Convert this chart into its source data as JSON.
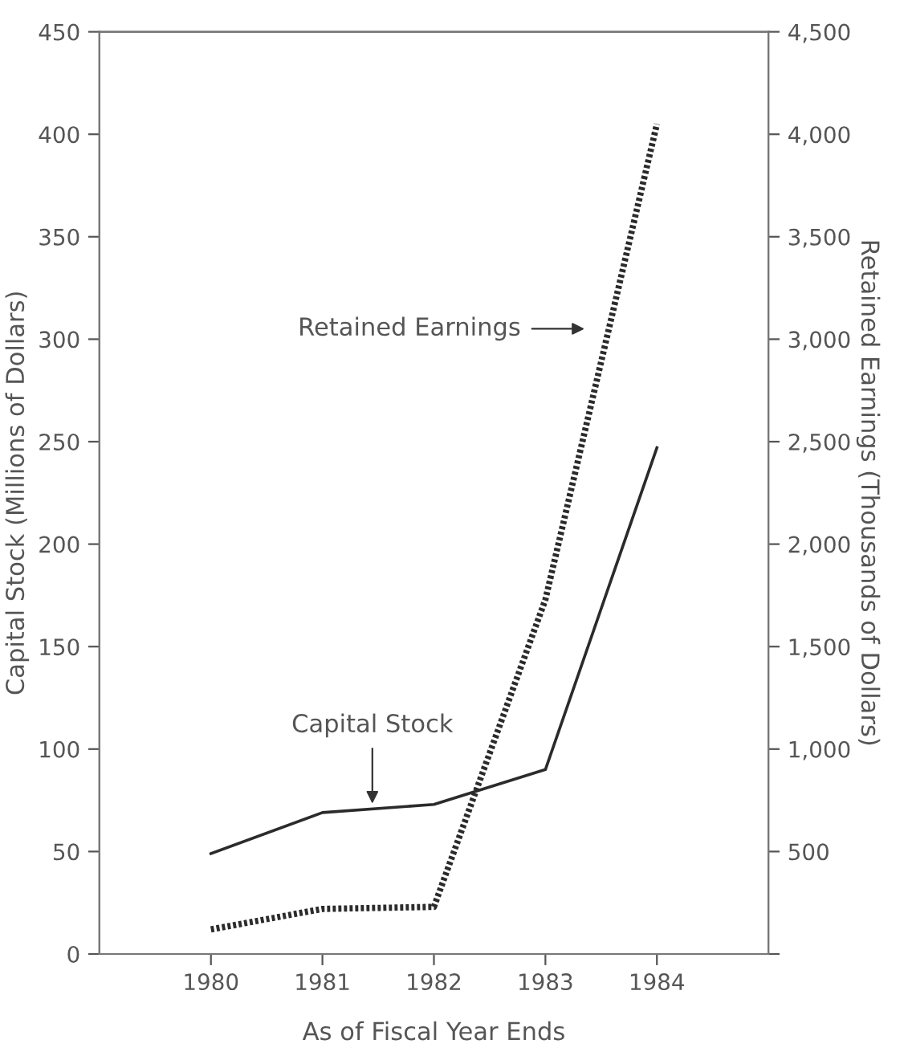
{
  "chart_data": {
    "type": "line",
    "xlabel": "As of Fiscal Year Ends",
    "ylabel": "Capital Stock (Millions of Dollars)",
    "y2label": "Retained Earnings (Thousands of Dollars)",
    "x": [
      1980,
      1981,
      1982,
      1983,
      1984
    ],
    "series": [
      {
        "color": "#2b2b2b",
        "line_style": "solid",
        "values": [
          49,
          69,
          73,
          90,
          247
        ]
      },
      {
        "color": "#2b2b2b",
        "line_style": "dotted",
        "axis": "y2",
        "values": [
          120,
          220,
          230,
          1730,
          4050
        ]
      }
    ],
    "xlim": [
      1979,
      1985
    ],
    "xticks": [
      1980,
      1981,
      1982,
      1983,
      1984
    ],
    "ylim": [
      0,
      450
    ],
    "yticks": [
      0,
      50,
      100,
      150,
      200,
      250,
      300,
      350,
      400,
      450
    ],
    "y2lim": [
      0,
      4500
    ],
    "y2ticks": [
      {
        "value": 0,
        "label": null
      },
      {
        "value": 500,
        "label": "500"
      },
      {
        "value": 1000,
        "label": "1,000"
      },
      {
        "value": 1500,
        "label": "1,500"
      },
      {
        "value": 2000,
        "label": "2,000"
      },
      {
        "value": 2500,
        "label": "2,500"
      },
      {
        "value": 3000,
        "label": "3,000"
      },
      {
        "value": 3500,
        "label": "3,500"
      },
      {
        "value": 4000,
        "label": "4,000"
      },
      {
        "value": 4500,
        "label": "4,500"
      }
    ],
    "annotations": [
      "Capital Stock",
      "Retained Earnings"
    ],
    "grid": false,
    "legend": false,
    "marker": "none"
  }
}
